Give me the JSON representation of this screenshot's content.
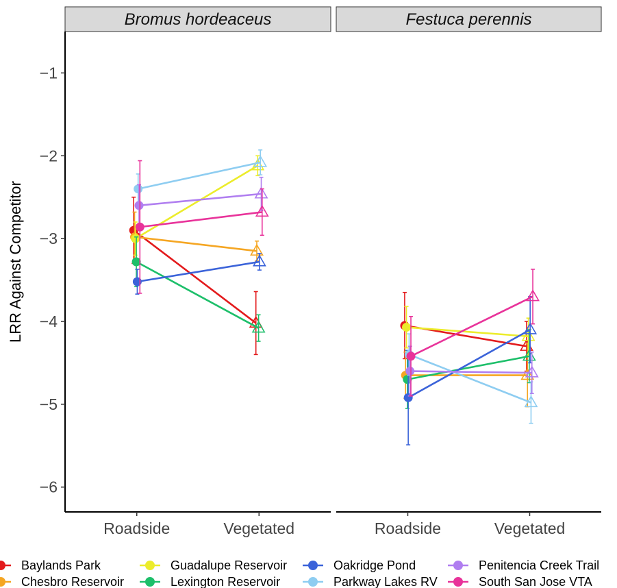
{
  "chart_data": {
    "type": "line",
    "facets": [
      "Bromus hordeaceus",
      "Festuca perennis"
    ],
    "categories": [
      "Roadside",
      "Vegetated"
    ],
    "ylabel": "LRR Against Competitor",
    "xlabel": "",
    "ylim": [
      -6.3,
      -0.5
    ],
    "yticks": [
      "−1",
      "−2",
      "−3",
      "−4",
      "−5",
      "−6"
    ],
    "ytick_values": [
      -1,
      -2,
      -3,
      -4,
      -5,
      -6
    ],
    "grid": false,
    "legend_position": "bottom",
    "series": [
      {
        "name": "Baylands Park",
        "color": "#e31a1c",
        "values": [
          [
            -2.9,
            -4.02
          ],
          [
            -4.05,
            -4.3
          ]
        ],
        "errors": [
          [
            0.4,
            0.38
          ],
          [
            0.4,
            0.3
          ]
        ]
      },
      {
        "name": "Chesbro Reservoir",
        "color": "#f5a623",
        "values": [
          [
            -2.98,
            -3.15
          ],
          [
            -4.65,
            -4.65
          ]
        ],
        "errors": [
          [
            0.3,
            0.12
          ],
          [
            0.28,
            0.38
          ]
        ]
      },
      {
        "name": "Guadalupe Reservoir",
        "color": "#ecec2b",
        "values": [
          [
            -3.0,
            -2.12
          ],
          [
            -4.07,
            -4.18
          ]
        ],
        "errors": [
          [
            0.2,
            0.12
          ],
          [
            0.25,
            0.22
          ]
        ]
      },
      {
        "name": "Lexington Reservoir",
        "color": "#1dbf6a",
        "values": [
          [
            -3.28,
            -4.08
          ],
          [
            -4.7,
            -4.42
          ]
        ],
        "errors": [
          [
            0.3,
            0.16
          ],
          [
            0.35,
            0.32
          ]
        ]
      },
      {
        "name": "Oakridge Pond",
        "color": "#3b63d9",
        "values": [
          [
            -3.52,
            -3.28
          ],
          [
            -4.92,
            -4.1
          ]
        ],
        "errors": [
          [
            0.15,
            0.1
          ],
          [
            0.57,
            0.4
          ]
        ]
      },
      {
        "name": "Parkway Lakes RV",
        "color": "#8ecdf1",
        "values": [
          [
            -2.4,
            -2.08
          ],
          [
            -4.4,
            -4.98
          ]
        ],
        "errors": [
          [
            0.18,
            0.15
          ],
          [
            0.25,
            0.25
          ]
        ]
      },
      {
        "name": "Penitencia Creek Trail",
        "color": "#b07ef0",
        "values": [
          [
            -2.6,
            -2.46
          ],
          [
            -4.6,
            -4.62
          ]
        ],
        "errors": [
          [
            0.25,
            0.2
          ],
          [
            0.3,
            0.25
          ]
        ]
      },
      {
        "name": "South San Jose VTA",
        "color": "#e8339a",
        "values": [
          [
            -2.86,
            -2.68
          ],
          [
            -4.42,
            -3.7
          ]
        ],
        "errors": [
          [
            0.8,
            0.28
          ],
          [
            0.48,
            0.33
          ]
        ]
      }
    ]
  }
}
